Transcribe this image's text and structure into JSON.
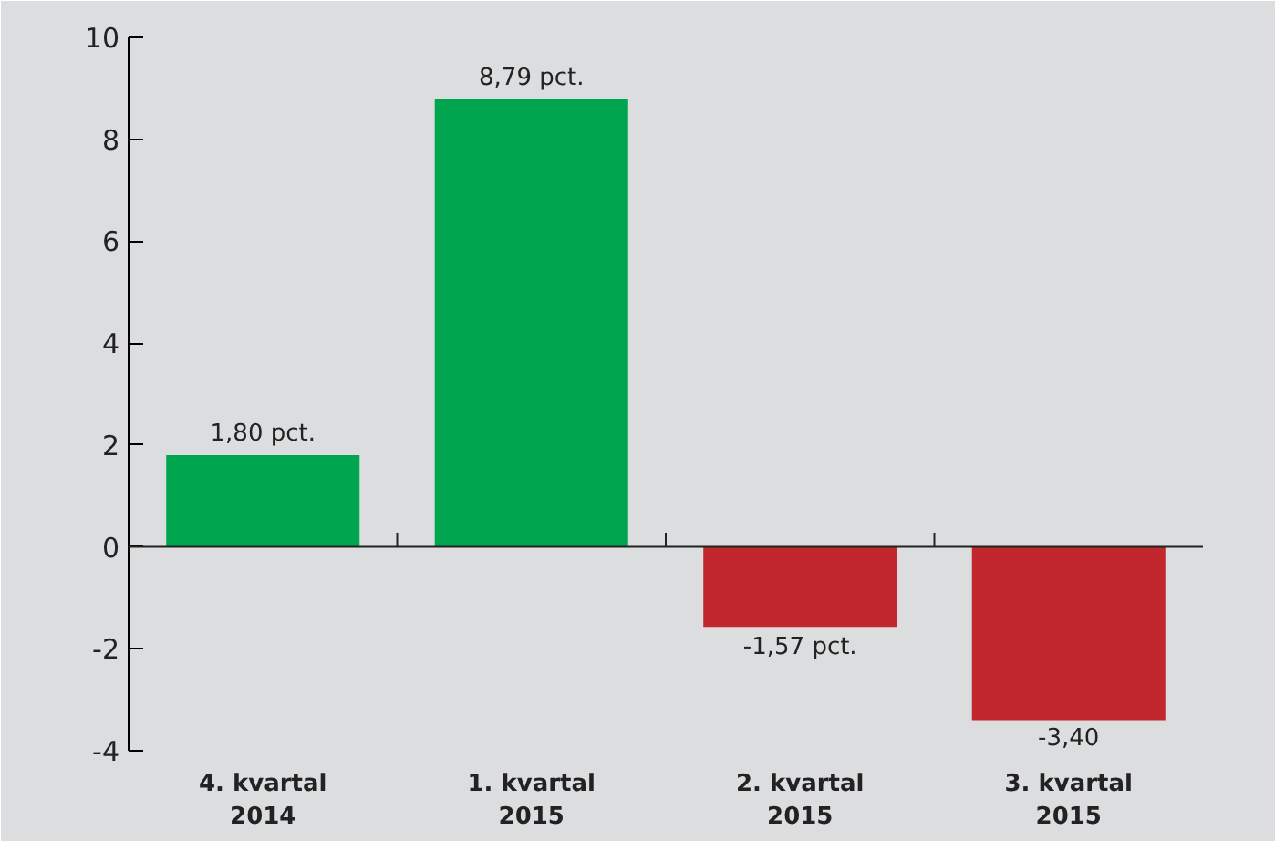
{
  "chart_data": {
    "type": "bar",
    "categories": [
      "4. kvartal\n2014",
      "1. kvartal\n2015",
      "2. kvartal\n2015",
      "3. kvartal\n2015"
    ],
    "values": [
      1.8,
      8.79,
      -1.57,
      -3.4
    ],
    "colors": [
      "#00a64f",
      "#00a64f",
      "#c1272d",
      "#c1272d"
    ],
    "value_labels": [
      "1,80 pct.",
      "8,79 pct.",
      "-1,57 pct.",
      "-3,40"
    ],
    "ylim": [
      -4,
      10
    ],
    "yticks": [
      -4,
      -2,
      0,
      2,
      4,
      6,
      8,
      10
    ]
  }
}
